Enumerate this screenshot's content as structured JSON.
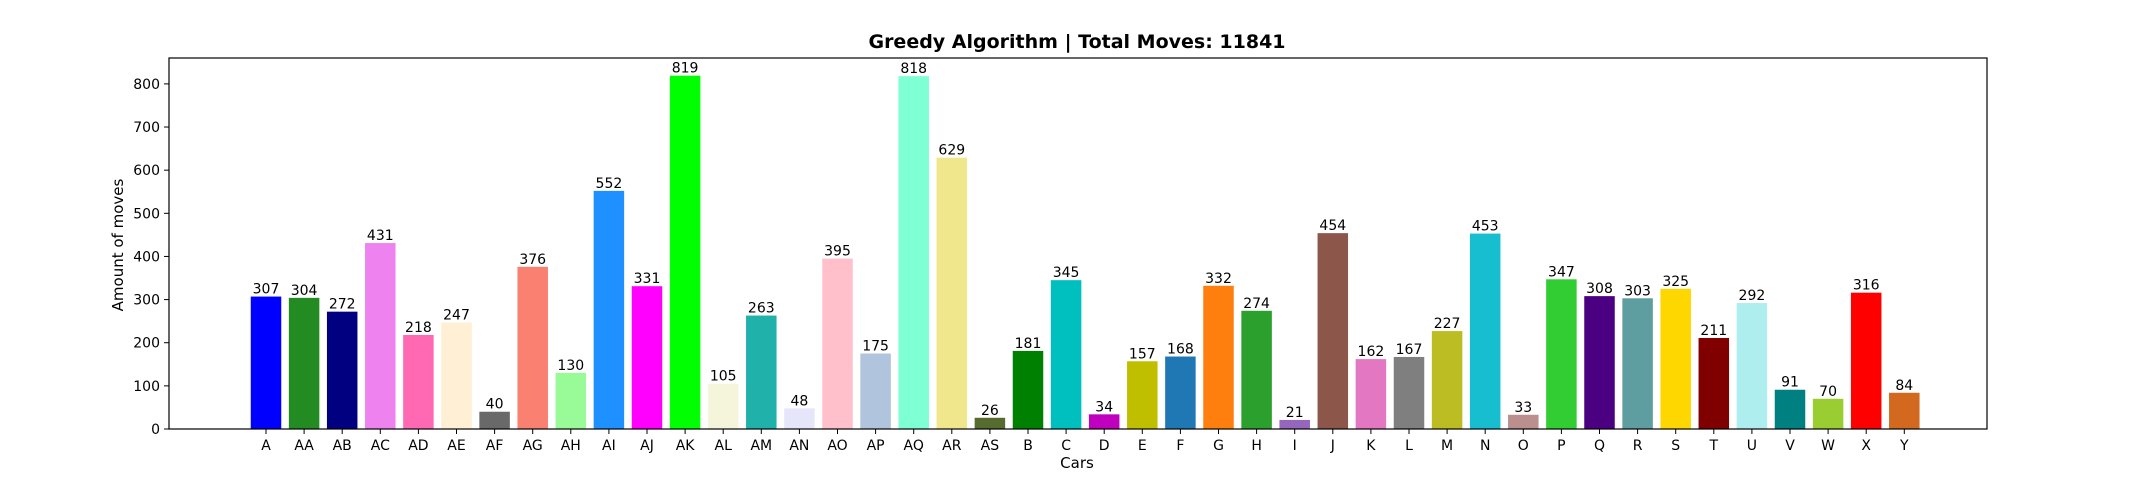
{
  "chart_data": {
    "type": "bar",
    "title": "Greedy Algorithm | Total Moves: 11841",
    "xlabel": "Cars",
    "ylabel": "Amount of moves",
    "ylim": [
      0,
      860
    ],
    "yticks": [
      0,
      100,
      200,
      300,
      400,
      500,
      600,
      700,
      800
    ],
    "grid": false,
    "categories": [
      "A",
      "AA",
      "AB",
      "AC",
      "AD",
      "AE",
      "AF",
      "AG",
      "AH",
      "AI",
      "AJ",
      "AK",
      "AL",
      "AM",
      "AN",
      "AO",
      "AP",
      "AQ",
      "AR",
      "AS",
      "B",
      "C",
      "D",
      "E",
      "F",
      "G",
      "H",
      "I",
      "J",
      "K",
      "L",
      "M",
      "N",
      "O",
      "P",
      "Q",
      "R",
      "S",
      "T",
      "U",
      "V",
      "W",
      "X",
      "Y"
    ],
    "values": [
      307,
      304,
      272,
      431,
      218,
      247,
      40,
      376,
      130,
      552,
      331,
      819,
      105,
      263,
      48,
      395,
      175,
      818,
      629,
      26,
      181,
      345,
      34,
      157,
      168,
      332,
      274,
      21,
      454,
      162,
      167,
      227,
      453,
      33,
      347,
      308,
      303,
      325,
      211,
      292,
      91,
      70,
      316,
      84
    ],
    "colors": [
      "#0000ff",
      "#228b22",
      "#000080",
      "#ee82ee",
      "#ff69b4",
      "#ffefd5",
      "#696969",
      "#fa8072",
      "#98fb98",
      "#1e90ff",
      "#ff00ff",
      "#00ff00",
      "#f5f5dc",
      "#20b2aa",
      "#e6e6fa",
      "#ffc0cb",
      "#b0c4de",
      "#7fffd4",
      "#f0e68c",
      "#556b2f",
      "#008000",
      "#00bfbf",
      "#bf00bf",
      "#bfbf00",
      "#1f77b4",
      "#ff7f0e",
      "#2ca02c",
      "#9467bd",
      "#8c564b",
      "#e377c2",
      "#7f7f7f",
      "#bcbd22",
      "#17becf",
      "#bc8f8f",
      "#32cd32",
      "#4b0082",
      "#5f9ea0",
      "#ffd700",
      "#800000",
      "#afeeee",
      "#008080",
      "#9acd32",
      "#ff0000",
      "#d2691e"
    ]
  }
}
